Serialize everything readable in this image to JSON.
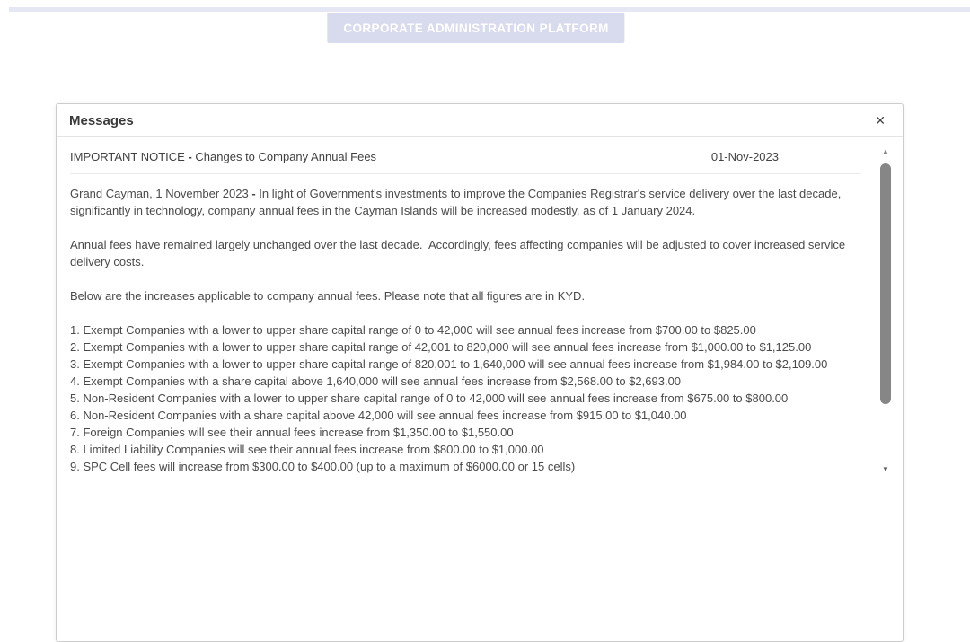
{
  "colors": {
    "accent_lavender": "#d8daee",
    "top_bar": "#e6e7f5",
    "badge_text": "#ffffff"
  },
  "header": {
    "platform_title": "CORPORATE ADMINISTRATION PLATFORM"
  },
  "dialog": {
    "title": "Messages",
    "close_icon": "✕"
  },
  "message": {
    "subject": {
      "prefix": "IMPORTANT NOTICE ",
      "bold": "- ",
      "rest": "Changes to Company Annual Fees"
    },
    "date": "01-Nov-2023",
    "para1": {
      "prefix": "Grand Cayman, 1 November 2023 ",
      "bold": "- ",
      "rest": "In light of Government's investments to improve the Companies Registrar's service delivery over the last decade, significantly in technology, company annual fees in the Cayman Islands will be increased modestly, as of 1 January 2024."
    },
    "para2": "Annual fees have remained largely unchanged over the last decade.  Accordingly, fees affecting companies will be adjusted to cover increased service delivery costs.",
    "para3": "Below are the increases applicable to company annual fees. Please note that all figures are in KYD.",
    "fee_items": [
      "1. Exempt Companies with a lower to upper share capital range of 0 to 42,000 will see annual fees increase from $700.00 to $825.00",
      "2. Exempt Companies with a lower to upper share capital range of 42,001 to 820,000 will see annual fees increase from $1,000.00 to $1,125.00",
      "3. Exempt Companies with a lower to upper share capital range of 820,001 to 1,640,000 will see annual fees increase from $1,984.00 to $2,109.00",
      "4. Exempt Companies with a share capital above 1,640,000 will see annual fees increase from $2,568.00 to $2,693.00",
      "5. Non-Resident Companies with a lower to upper share capital range of 0 to 42,000 will see annual fees increase from $675.00 to $800.00",
      "6. Non-Resident Companies with a share capital above 42,000 will see annual fees increase from $915.00 to $1,040.00",
      "7. Foreign Companies will see their annual fees increase from $1,350.00 to $1,550.00",
      "8. Limited Liability Companies will see their annual fees increase from $800.00 to $1,000.00",
      "9. SPC Cell fees will increase from $300.00 to $400.00 (up to a maximum of $6000.00 or 15 cells)"
    ]
  },
  "scrollbar": {
    "up_icon": "▲",
    "down_icon": "▼"
  }
}
